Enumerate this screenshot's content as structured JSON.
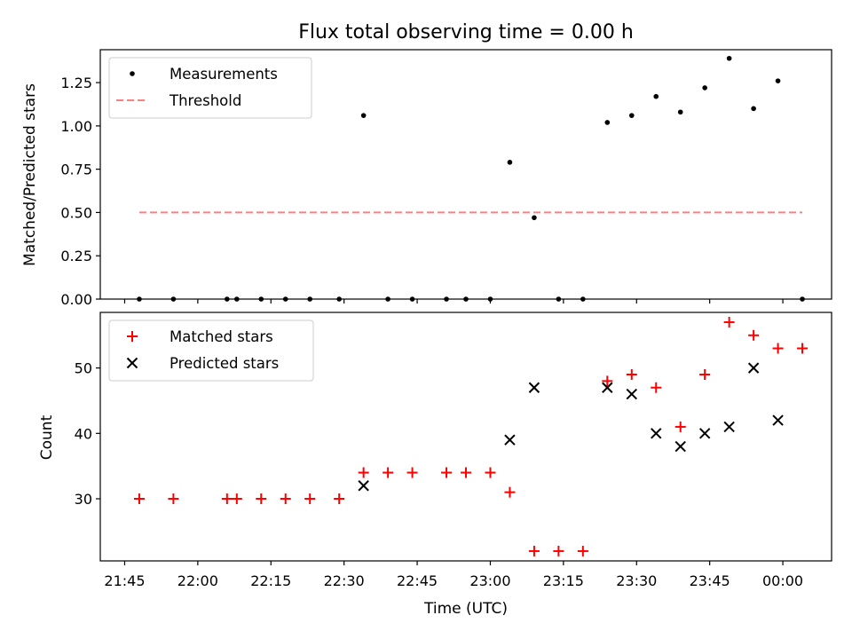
{
  "title": "Flux total observing time = 0.00 h",
  "xlabel": "Time (UTC)",
  "x_ticks": [
    "21:45",
    "22:00",
    "22:15",
    "22:30",
    "22:45",
    "23:00",
    "23:15",
    "23:30",
    "23:45",
    "00:00"
  ],
  "colors": {
    "measurement": "#000000",
    "threshold": "#ff7f7f",
    "matched": "#ff0000",
    "predicted": "#000000"
  },
  "chart_data": [
    {
      "type": "scatter",
      "ylabel": "Matched/Predicted stars",
      "ylim": [
        0,
        1.44
      ],
      "y_ticks": [
        "0.00",
        "0.25",
        "0.50",
        "0.75",
        "1.00",
        "1.25"
      ],
      "legend_position": "top-left",
      "series": [
        {
          "name": "Measurements",
          "marker": "dot",
          "points": [
            [
              "21:48",
              0
            ],
            [
              "21:55",
              0
            ],
            [
              "22:06",
              0
            ],
            [
              "22:08",
              0
            ],
            [
              "22:13",
              0
            ],
            [
              "22:18",
              0
            ],
            [
              "22:23",
              0
            ],
            [
              "22:29",
              0
            ],
            [
              "22:34",
              1.06
            ],
            [
              "22:39",
              0
            ],
            [
              "22:44",
              0
            ],
            [
              "22:51",
              0
            ],
            [
              "22:55",
              0
            ],
            [
              "22:60",
              0
            ],
            [
              "23:04",
              0.79
            ],
            [
              "23:09",
              0.47
            ],
            [
              "23:14",
              0
            ],
            [
              "23:19",
              0
            ],
            [
              "23:24",
              1.02
            ],
            [
              "23:29",
              1.06
            ],
            [
              "23:34",
              1.17
            ],
            [
              "23:39",
              1.08
            ],
            [
              "23:44",
              1.22
            ],
            [
              "23:49",
              1.39
            ],
            [
              "23:54",
              1.1
            ],
            [
              "23:59",
              1.26
            ],
            [
              "24:04",
              0
            ]
          ]
        },
        {
          "name": "Threshold",
          "marker": "dashed-line",
          "points": [
            [
              "21:48",
              0.5
            ],
            [
              "24:04",
              0.5
            ]
          ]
        }
      ]
    },
    {
      "type": "scatter",
      "ylabel": "Count",
      "ylim": [
        20.5,
        58.5
      ],
      "y_ticks": [
        "30",
        "40",
        "50"
      ],
      "legend_position": "top-left",
      "series": [
        {
          "name": "Matched stars",
          "marker": "plus",
          "points": [
            [
              "21:48",
              30
            ],
            [
              "21:55",
              30
            ],
            [
              "22:06",
              30
            ],
            [
              "22:08",
              30
            ],
            [
              "22:13",
              30
            ],
            [
              "22:18",
              30
            ],
            [
              "22:23",
              30
            ],
            [
              "22:29",
              30
            ],
            [
              "22:34",
              34
            ],
            [
              "22:39",
              34
            ],
            [
              "22:44",
              34
            ],
            [
              "22:51",
              34
            ],
            [
              "22:55",
              34
            ],
            [
              "22:60",
              34
            ],
            [
              "23:04",
              31
            ],
            [
              "23:09",
              22
            ],
            [
              "23:14",
              22
            ],
            [
              "23:19",
              22
            ],
            [
              "23:24",
              48
            ],
            [
              "23:29",
              49
            ],
            [
              "23:34",
              47
            ],
            [
              "23:39",
              41
            ],
            [
              "23:44",
              49
            ],
            [
              "23:49",
              57
            ],
            [
              "23:54",
              55
            ],
            [
              "23:59",
              53
            ],
            [
              "24:04",
              53
            ]
          ]
        },
        {
          "name": "Predicted stars",
          "marker": "x",
          "points": [
            [
              "22:34",
              32
            ],
            [
              "23:04",
              39
            ],
            [
              "23:09",
              47
            ],
            [
              "23:24",
              47
            ],
            [
              "23:29",
              46
            ],
            [
              "23:34",
              40
            ],
            [
              "23:39",
              38
            ],
            [
              "23:44",
              40
            ],
            [
              "23:49",
              41
            ],
            [
              "23:54",
              50
            ],
            [
              "23:59",
              42
            ]
          ]
        }
      ]
    }
  ]
}
